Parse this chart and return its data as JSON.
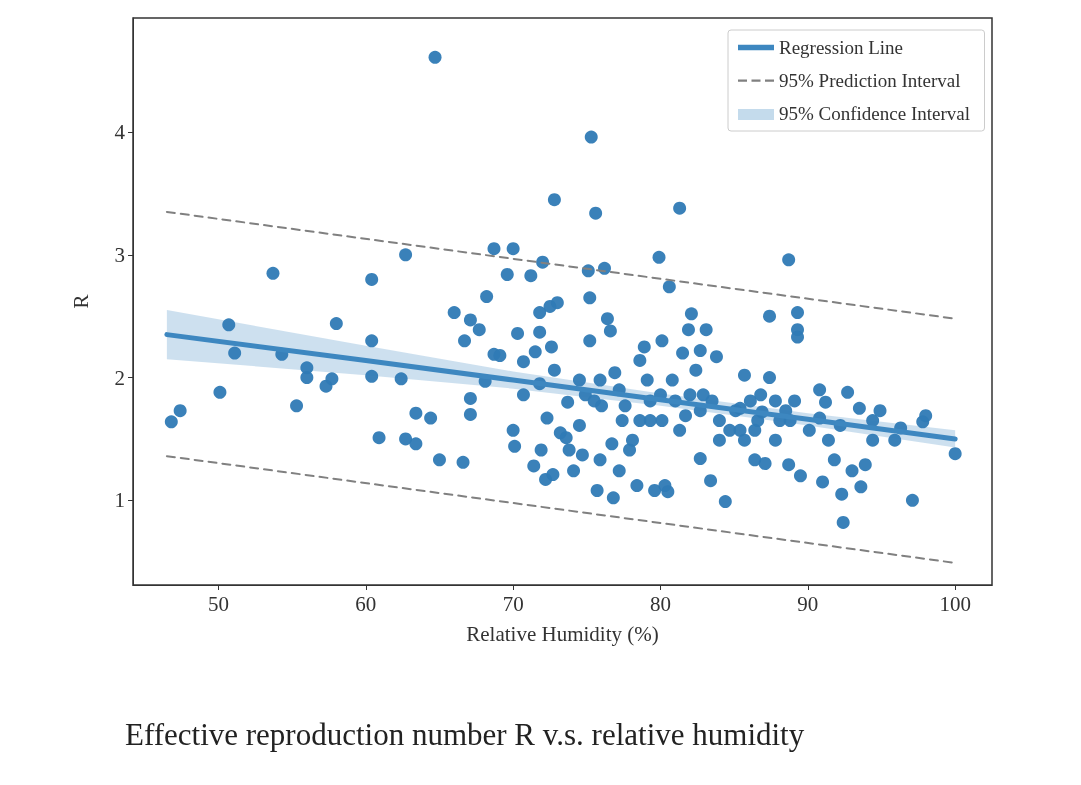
{
  "chart_data": {
    "type": "scatter",
    "title": "Effective reproduction number R v.s. relative humidity",
    "xlabel": "Relative Humidity (%)",
    "ylabel": "R",
    "xlim": [
      44.2,
      102.5
    ],
    "xticks": [
      50,
      60,
      70,
      80,
      90,
      100
    ],
    "ylim": [
      0.31,
      4.93
    ],
    "yticks": [
      1,
      2,
      3,
      4
    ],
    "grid": false,
    "legend": "top right",
    "series": [
      {
        "color": "#2f7ab5",
        "marker": "circle",
        "x": [
          46.8,
          47.4,
          50.1,
          50.7,
          51.1,
          53.7,
          54.3,
          55.3,
          56.0,
          56.0,
          57.3,
          57.7,
          58.0,
          60.4,
          60.4,
          60.4,
          60.9,
          62.4,
          62.7,
          62.7,
          63.4,
          63.4,
          64.4,
          64.7,
          65.0,
          66.0,
          66.7,
          66.6,
          67.1,
          67.1,
          67.1,
          67.7,
          68.2,
          68.7,
          68.7,
          69.1,
          68.1,
          69.6,
          70.0,
          70.0,
          70.1,
          70.3,
          70.7,
          70.7,
          71.2,
          71.4,
          71.5,
          71.9,
          71.8,
          71.8,
          71.8,
          72.0,
          72.5,
          72.6,
          72.8,
          72.8,
          73.0,
          73.2,
          72.2,
          72.3,
          72.7,
          73.6,
          73.7,
          73.8,
          74.1,
          74.5,
          74.7,
          74.9,
          75.1,
          75.2,
          75.2,
          75.3,
          75.6,
          75.7,
          75.9,
          76.0,
          76.2,
          76.4,
          76.6,
          76.7,
          76.8,
          76.9,
          77.2,
          77.4,
          77.9,
          78.1,
          78.4,
          78.6,
          78.9,
          79.1,
          79.3,
          79.6,
          79.9,
          80.1,
          80.1,
          80.3,
          80.5,
          80.6,
          80.8,
          81.3,
          81.5,
          81.7,
          81.9,
          82.1,
          82.4,
          82.7,
          82.7,
          82.9,
          83.1,
          83.4,
          83.8,
          84.0,
          84.4,
          84.7,
          85.1,
          85.7,
          86.1,
          86.4,
          86.6,
          87.1,
          87.4,
          87.4,
          87.8,
          88.1,
          88.7,
          88.7,
          89.1,
          89.3,
          89.3,
          89.3,
          89.5,
          90.1,
          90.8,
          90.8,
          91.0,
          91.2,
          91.8,
          92.2,
          92.3,
          92.4,
          92.7,
          93.0,
          93.5,
          93.6,
          93.9,
          94.4,
          94.4,
          95.9,
          96.3,
          97.1,
          97.8,
          98.0,
          100.0,
          85.4,
          85.7,
          86.8,
          86.9,
          87.8,
          88.5,
          88.8,
          82.7,
          82.0,
          81.0,
          80.0,
          79.3,
          78.6,
          77.2,
          77.6,
          75.9,
          75.5,
          74.5,
          84.0,
          83.5,
          81.3,
          85.4,
          86.4,
          91.4,
          94.9
        ],
        "values": [
          1.64,
          1.73,
          1.88,
          2.43,
          2.2,
          2.85,
          2.19,
          1.77,
          2.08,
          2.0,
          1.93,
          1.99,
          2.44,
          2.8,
          2.3,
          2.01,
          1.51,
          1.99,
          3.0,
          1.5,
          1.46,
          1.71,
          1.67,
          4.61,
          1.33,
          2.53,
          2.3,
          1.31,
          1.83,
          1.7,
          2.47,
          2.39,
          2.66,
          3.05,
          2.19,
          2.18,
          1.97,
          2.84,
          3.05,
          1.57,
          1.44,
          2.36,
          2.13,
          1.86,
          2.83,
          1.28,
          2.21,
          1.41,
          2.53,
          2.37,
          1.95,
          2.94,
          2.58,
          2.25,
          2.06,
          3.45,
          2.61,
          1.55,
          1.17,
          1.67,
          1.21,
          1.51,
          1.8,
          1.41,
          1.24,
          1.61,
          1.37,
          1.86,
          2.87,
          2.3,
          2.65,
          3.96,
          3.34,
          1.08,
          1.33,
          1.77,
          2.89,
          2.48,
          2.38,
          1.46,
          1.02,
          2.04,
          1.24,
          1.65,
          1.41,
          1.49,
          1.12,
          2.14,
          2.25,
          1.98,
          1.81,
          1.08,
          2.98,
          2.3,
          1.65,
          1.12,
          1.07,
          2.74,
          1.98,
          3.38,
          2.2,
          1.69,
          2.39,
          2.52,
          2.06,
          2.22,
          1.34,
          1.86,
          2.39,
          1.16,
          2.17,
          1.49,
          0.99,
          1.57,
          1.73,
          2.02,
          1.81,
          1.33,
          1.65,
          1.3,
          2.5,
          2.0,
          1.49,
          1.65,
          1.29,
          2.96,
          1.81,
          2.53,
          2.39,
          2.33,
          1.2,
          1.57,
          1.9,
          1.67,
          1.15,
          1.8,
          1.33,
          1.61,
          1.05,
          0.82,
          1.88,
          1.24,
          1.75,
          1.11,
          1.29,
          1.65,
          1.49,
          1.49,
          1.59,
          1.0,
          1.64,
          1.69,
          1.38,
          1.57,
          1.49,
          1.86,
          1.72,
          1.81,
          1.73,
          1.65,
          1.73,
          1.86,
          1.81,
          1.86,
          1.65,
          1.65,
          1.9,
          1.77,
          1.98,
          1.81,
          1.98,
          1.65,
          1.81,
          1.57,
          1.75,
          1.57,
          1.49,
          1.73
        ]
      },
      {
        "type": "line",
        "name": "Regression Line",
        "color": "#3d87c0",
        "line_style": "solid",
        "marker": "none",
        "x": [
          46.5,
          60,
          70,
          80,
          90,
          100
        ],
        "values": [
          2.35,
          2.14,
          1.98,
          1.82,
          1.66,
          1.5
        ],
        "lower": [
          2.15,
          2.02,
          1.91,
          1.77,
          1.61,
          1.43
        ],
        "upper": [
          2.55,
          2.26,
          2.05,
          1.87,
          1.71,
          1.57
        ]
      },
      {
        "type": "line",
        "name": "95% Prediction Interval",
        "color": "#808080",
        "line_style": "dashed",
        "marker": "none",
        "x": [
          46.5,
          100
        ],
        "values": [
          3.35,
          2.48
        ]
      },
      {
        "type": "line",
        "color": "#808080",
        "line_style": "dashed",
        "marker": "none",
        "x": [
          46.5,
          100
        ],
        "values": [
          1.36,
          0.49
        ]
      }
    ],
    "annotations": [
      "95% Confidence Interval"
    ]
  }
}
